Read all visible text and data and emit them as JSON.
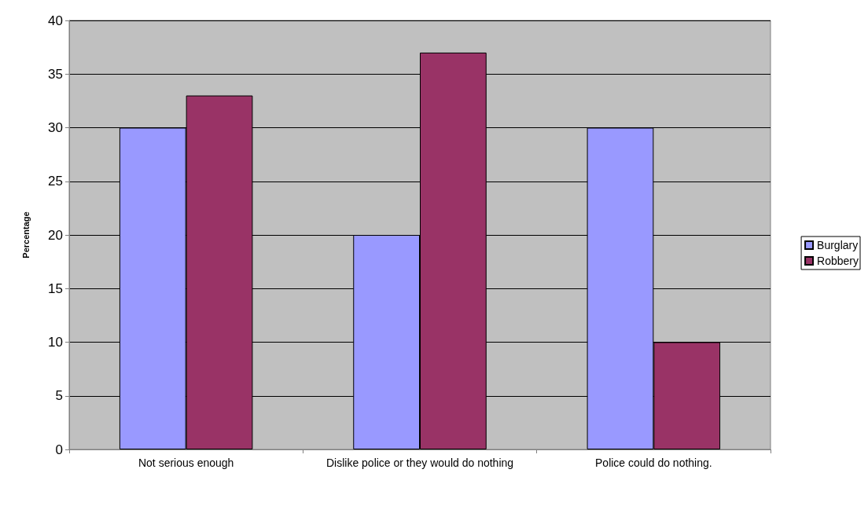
{
  "chart_data": {
    "type": "bar",
    "ylabel": "Percentage",
    "categories": [
      "Not serious enough",
      "Dislike police or they would do nothing",
      "Police could do nothing."
    ],
    "series": [
      {
        "name": "Burglary",
        "color": "#9999ff",
        "values": [
          30,
          20,
          30
        ]
      },
      {
        "name": "Robbery",
        "color": "#993366",
        "values": [
          33,
          37,
          10
        ]
      }
    ],
    "ylim": [
      0,
      40
    ],
    "yticks": [
      0,
      5,
      10,
      15,
      20,
      25,
      30,
      35,
      40
    ],
    "grid": "y",
    "legend": "right"
  }
}
